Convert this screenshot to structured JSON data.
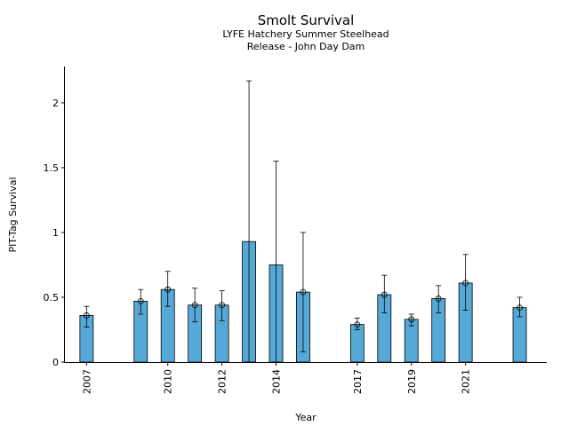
{
  "chart_data": {
    "type": "bar",
    "title": "Smolt Survival",
    "subtitle_lines": [
      "LYFE Hatchery Summer Steelhead",
      "Release - John Day Dam"
    ],
    "xlabel": "Year",
    "ylabel": "PIT-Tag Survival",
    "ylim": [
      0,
      2.28
    ],
    "yticks": [
      0,
      0.5,
      1,
      1.5,
      2
    ],
    "ytick_labels": [
      "0",
      "0.5",
      "1",
      "1.5",
      "2"
    ],
    "xticks": [
      2007,
      2010,
      2012,
      2014,
      2017,
      2019,
      2021
    ],
    "xtick_labels": [
      "2007",
      "2010",
      "2012",
      "2014",
      "2017",
      "2019",
      "2021"
    ],
    "xlim": [
      2006.2,
      2024.0
    ],
    "grid": false,
    "bars": [
      {
        "x": 2007,
        "value": 0.36,
        "lower": 0.27,
        "upper": 0.43,
        "marker": true
      },
      {
        "x": 2009,
        "value": 0.47,
        "lower": 0.37,
        "upper": 0.56,
        "marker": true
      },
      {
        "x": 2010,
        "value": 0.56,
        "lower": 0.43,
        "upper": 0.7,
        "marker": true
      },
      {
        "x": 2011,
        "value": 0.44,
        "lower": 0.31,
        "upper": 0.57,
        "marker": true
      },
      {
        "x": 2012,
        "value": 0.44,
        "lower": 0.32,
        "upper": 0.55,
        "marker": true
      },
      {
        "x": 2013,
        "value": 0.93,
        "lower": 0.0,
        "upper": 2.17,
        "marker": false
      },
      {
        "x": 2014,
        "value": 0.75,
        "lower": 0.0,
        "upper": 1.55,
        "marker": false
      },
      {
        "x": 2015,
        "value": 0.54,
        "lower": 0.08,
        "upper": 1.0,
        "marker": true
      },
      {
        "x": 2017,
        "value": 0.29,
        "lower": 0.25,
        "upper": 0.34,
        "marker": true
      },
      {
        "x": 2018,
        "value": 0.52,
        "lower": 0.38,
        "upper": 0.67,
        "marker": true
      },
      {
        "x": 2019,
        "value": 0.33,
        "lower": 0.28,
        "upper": 0.37,
        "marker": true
      },
      {
        "x": 2020,
        "value": 0.49,
        "lower": 0.38,
        "upper": 0.59,
        "marker": true
      },
      {
        "x": 2021,
        "value": 0.61,
        "lower": 0.4,
        "upper": 0.83,
        "marker": true
      },
      {
        "x": 2023,
        "value": 0.42,
        "lower": 0.35,
        "upper": 0.5,
        "marker": true
      }
    ],
    "colors": {
      "bar": "#56a9d6",
      "edge": "#000000"
    }
  }
}
